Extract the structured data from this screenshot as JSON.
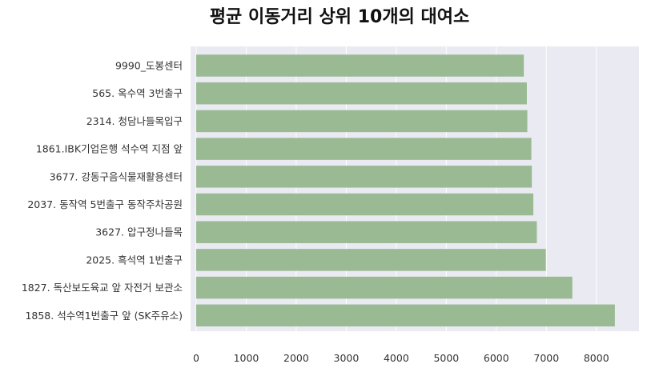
{
  "chart_data": {
    "type": "bar",
    "orientation": "horizontal",
    "title": "평균 이동거리 상위 10개의 대여소",
    "xlabel": "",
    "ylabel": "",
    "categories": [
      "9990_도봉센터",
      "565. 옥수역 3번출구",
      "2314. 청담나들목입구",
      "1861.IBK기업은행 석수역 지점 앞",
      "3677. 강동구음식물재활용센터",
      "2037. 동작역 5번출구 동작주차공원",
      "3627. 압구정나들목",
      "2025. 흑석역 1번출구",
      "1827. 독산보도육교 앞 자전거 보관소",
      "1858. 석수역1번출구 앞 (SK주유소)"
    ],
    "values": [
      6550,
      6610,
      6620,
      6700,
      6710,
      6740,
      6810,
      6990,
      7520,
      8370
    ],
    "xlim": [
      0,
      8500
    ],
    "xticks": [
      0,
      1000,
      2000,
      3000,
      4000,
      5000,
      6000,
      7000,
      8000
    ],
    "grid": true,
    "colors": {
      "bar": "#9aba94",
      "plot_background": "#eaeaf2",
      "grid": "#ffffff"
    }
  }
}
